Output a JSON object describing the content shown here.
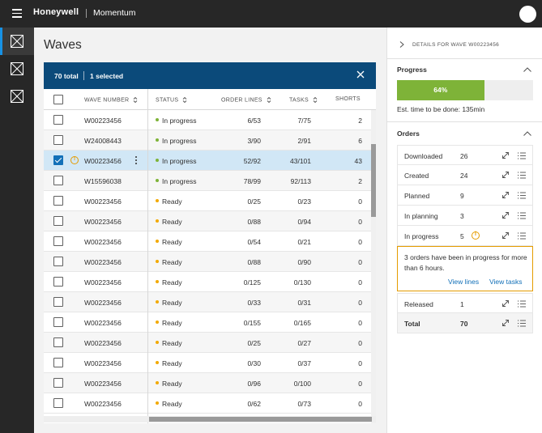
{
  "header": {
    "brand": "Honeywell",
    "product": "Momentum"
  },
  "page": {
    "title": "Waves"
  },
  "selection_bar": {
    "total": "70 total",
    "selected": "1 selected"
  },
  "table": {
    "columns": {
      "wave_number": "WAVE NUMBER",
      "status": "STATUS",
      "order_lines": "ORDER LINES",
      "tasks": "TASKS",
      "shorts": "SHORTS"
    },
    "rows": [
      {
        "wave": "W00223456",
        "status": "In progress",
        "lines": "6/53",
        "tasks": "7/75",
        "shorts": "2"
      },
      {
        "wave": "W24008443",
        "status": "In progress",
        "lines": "3/90",
        "tasks": "2/91",
        "shorts": "6"
      },
      {
        "wave": "W00223456",
        "status": "In progress",
        "lines": "52/92",
        "tasks": "43/101",
        "shorts": "43"
      },
      {
        "wave": "W15596038",
        "status": "In progress",
        "lines": "78/99",
        "tasks": "92/113",
        "shorts": "2"
      },
      {
        "wave": "W00223456",
        "status": "Ready",
        "lines": "0/25",
        "tasks": "0/23",
        "shorts": "0"
      },
      {
        "wave": "W00223456",
        "status": "Ready",
        "lines": "0/88",
        "tasks": "0/94",
        "shorts": "0"
      },
      {
        "wave": "W00223456",
        "status": "Ready",
        "lines": "0/54",
        "tasks": "0/21",
        "shorts": "0"
      },
      {
        "wave": "W00223456",
        "status": "Ready",
        "lines": "0/88",
        "tasks": "0/90",
        "shorts": "0"
      },
      {
        "wave": "W00223456",
        "status": "Ready",
        "lines": "0/125",
        "tasks": "0/130",
        "shorts": "0"
      },
      {
        "wave": "W00223456",
        "status": "Ready",
        "lines": "0/33",
        "tasks": "0/31",
        "shorts": "0"
      },
      {
        "wave": "W00223456",
        "status": "Ready",
        "lines": "0/155",
        "tasks": "0/165",
        "shorts": "0"
      },
      {
        "wave": "W00223456",
        "status": "Ready",
        "lines": "0/25",
        "tasks": "0/27",
        "shorts": "0"
      },
      {
        "wave": "W00223456",
        "status": "Ready",
        "lines": "0/30",
        "tasks": "0/37",
        "shorts": "0"
      },
      {
        "wave": "W00223456",
        "status": "Ready",
        "lines": "0/96",
        "tasks": "0/100",
        "shorts": "0"
      },
      {
        "wave": "W00223456",
        "status": "Ready",
        "lines": "0/62",
        "tasks": "0/73",
        "shorts": "0"
      }
    ],
    "selected_row_index": 2,
    "warning_row_index": 2
  },
  "details": {
    "title": "DETAILS FOR WAVE W00223456",
    "progress": {
      "title": "Progress",
      "percent_label": "64%",
      "percent": 64,
      "estimate": "Est. time to be done: 135min"
    },
    "orders": {
      "title": "Orders",
      "rows": [
        {
          "label": "Downloaded",
          "count": "26"
        },
        {
          "label": "Created",
          "count": "24"
        },
        {
          "label": "Planned",
          "count": "9"
        },
        {
          "label": "In planning",
          "count": "3"
        },
        {
          "label": "In progress",
          "count": "5"
        }
      ],
      "alert": {
        "message": "3 orders have been in progress for more than 6 hours.",
        "view_lines": "View lines",
        "view_tasks": "View tasks"
      },
      "released": {
        "label": "Released",
        "count": "1"
      },
      "total": {
        "label": "Total",
        "count": "70"
      }
    }
  },
  "colors": {
    "in_progress": "#7eb338",
    "ready": "#f2a900",
    "accent": "#1270b8",
    "selection_bar": "#0b4a7a",
    "warning": "#e59c00"
  }
}
